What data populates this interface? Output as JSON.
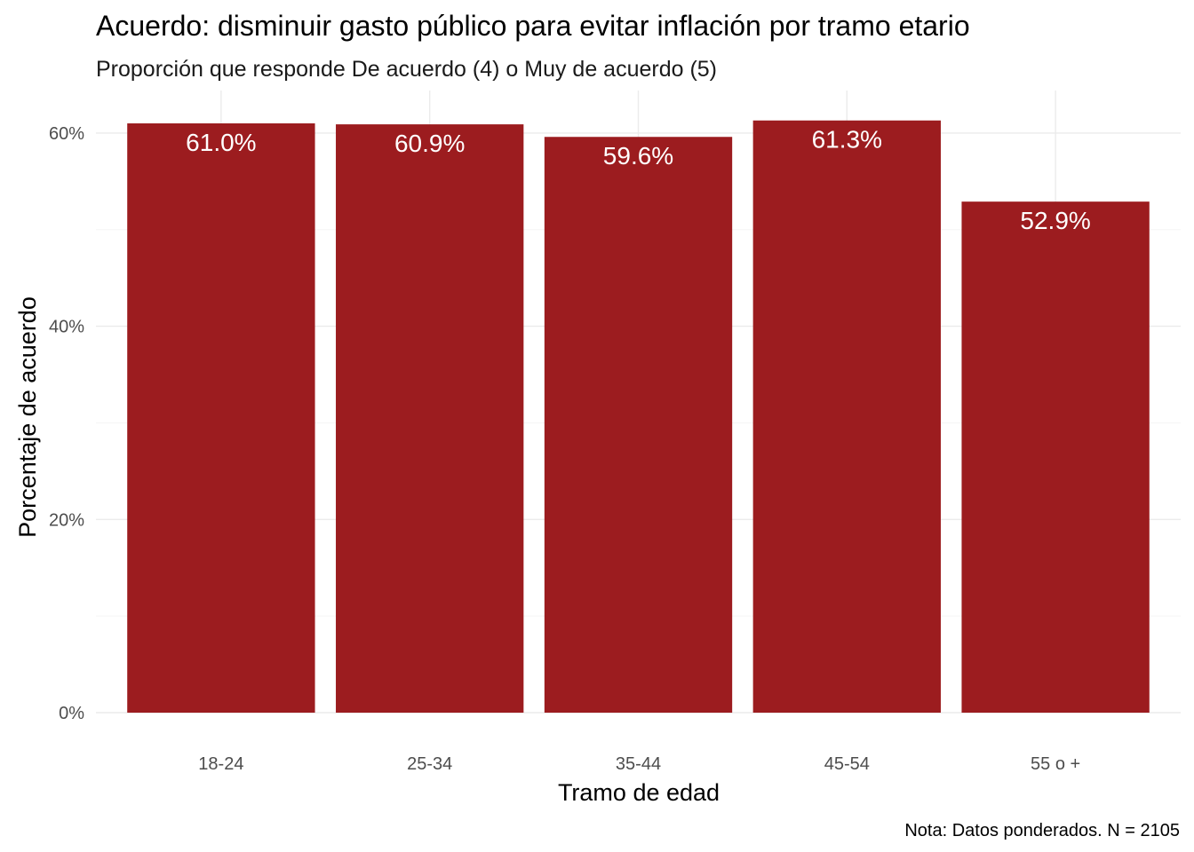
{
  "chart_data": {
    "type": "bar",
    "title": "Acuerdo: disminuir gasto público para evitar inflación por tramo etario",
    "subtitle": "Proporción que responde De acuerdo (4) o Muy de acuerdo (5)",
    "xlabel": "Tramo de edad",
    "ylabel": "Porcentaje de acuerdo",
    "caption": "Nota: Datos ponderados. N = 2105",
    "categories": [
      "18-24",
      "25-34",
      "35-44",
      "45-54",
      "55 o +"
    ],
    "values": [
      61.0,
      60.9,
      59.6,
      61.3,
      52.9
    ],
    "value_labels": [
      "61.0%",
      "60.9%",
      "59.6%",
      "61.3%",
      "52.9%"
    ],
    "ylim": [
      0,
      64.4
    ],
    "yticks": [
      0,
      20,
      40,
      60
    ],
    "ytick_labels": [
      "0%",
      "20%",
      "40%",
      "60%"
    ],
    "grid": true,
    "legend": "none",
    "bar_color": "#9c1c1f",
    "label_color": "#ffffff"
  }
}
